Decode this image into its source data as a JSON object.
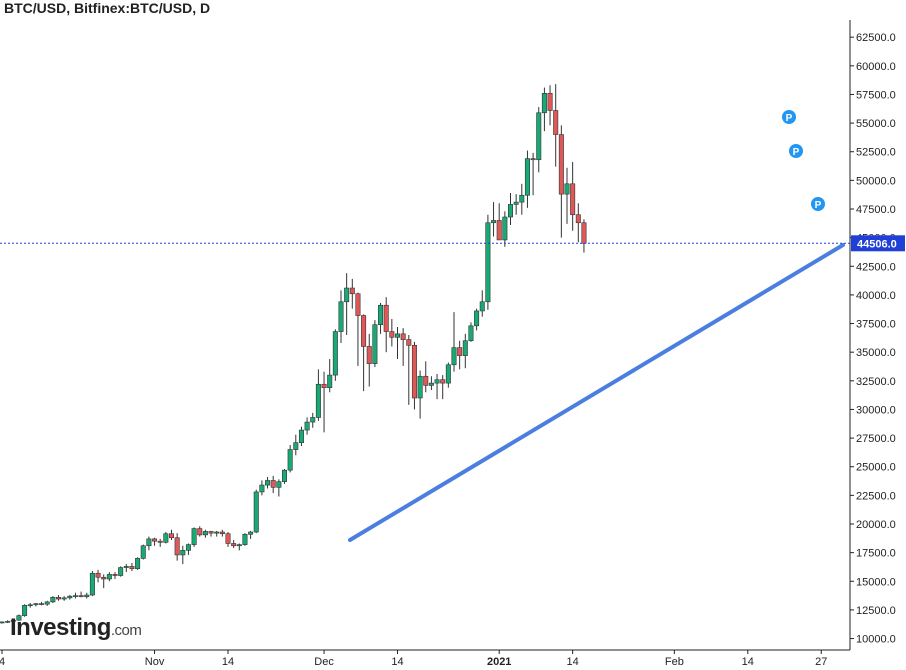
{
  "title": "BTC/USD, Bitfinex:BTC/USD, D",
  "logo": {
    "main": "Investing",
    "suffix": ".com"
  },
  "colors": {
    "up": "#19a974",
    "down": "#e05757",
    "trendline": "#4a7fe0",
    "price_line": "#1f3fd6",
    "marker": "#2196f3"
  },
  "current_price_label": "44506.0",
  "chart_data": {
    "type": "candlestick",
    "title": "BTC/USD, Bitfinex:BTC/USD, D",
    "ylim": [
      9000,
      64000
    ],
    "y_ticks": [
      "62500.0",
      "60000.0",
      "57500.0",
      "55000.0",
      "52500.0",
      "50000.0",
      "47500.0",
      "45000.0",
      "42500.0",
      "40000.0",
      "37500.0",
      "35000.0",
      "32500.0",
      "30000.0",
      "27500.0",
      "25000.0",
      "22500.0",
      "20000.0",
      "17500.0",
      "15000.0",
      "12500.0",
      "10000.0"
    ],
    "x_ticks": [
      {
        "label": "4",
        "index": 0
      },
      {
        "label": "Nov",
        "index": 27
      },
      {
        "label": "14",
        "index": 40
      },
      {
        "label": "Dec",
        "index": 57
      },
      {
        "label": "14",
        "index": 70
      },
      {
        "label": "2021",
        "index": 88
      },
      {
        "label": "14",
        "index": 101
      },
      {
        "label": "Feb",
        "index": 119
      },
      {
        "label": "14",
        "index": 132
      },
      {
        "label": "27",
        "index": 145
      }
    ],
    "current_price": 44506,
    "ohlc": [
      [
        11400,
        11500,
        11300,
        11450
      ],
      [
        11450,
        11600,
        11350,
        11500
      ],
      [
        11500,
        11700,
        11400,
        11600
      ],
      [
        11600,
        12100,
        11550,
        12000
      ],
      [
        12000,
        13000,
        11900,
        12900
      ],
      [
        12900,
        13100,
        12700,
        12950
      ],
      [
        12950,
        13100,
        12800,
        13050
      ],
      [
        13050,
        13200,
        12900,
        13000
      ],
      [
        13000,
        13300,
        12850,
        13200
      ],
      [
        13200,
        13700,
        13100,
        13600
      ],
      [
        13600,
        13800,
        13300,
        13450
      ],
      [
        13450,
        13700,
        13300,
        13550
      ],
      [
        13550,
        13800,
        13400,
        13700
      ],
      [
        13700,
        14000,
        13500,
        13750
      ],
      [
        13750,
        14100,
        13600,
        13650
      ],
      [
        13650,
        14000,
        13500,
        13800
      ],
      [
        13800,
        15900,
        13700,
        15700
      ],
      [
        15700,
        16000,
        14900,
        15350
      ],
      [
        15350,
        15600,
        14400,
        15200
      ],
      [
        15200,
        15800,
        15000,
        15600
      ],
      [
        15600,
        15800,
        15200,
        15500
      ],
      [
        15500,
        16300,
        15400,
        16200
      ],
      [
        16200,
        16500,
        15800,
        16300
      ],
      [
        16300,
        16600,
        15900,
        16100
      ],
      [
        16100,
        17100,
        16000,
        17000
      ],
      [
        17000,
        18200,
        16900,
        18100
      ],
      [
        18100,
        18900,
        17700,
        18700
      ],
      [
        18700,
        18800,
        18100,
        18500
      ],
      [
        18500,
        18700,
        18000,
        18400
      ],
      [
        18400,
        19300,
        18300,
        19150
      ],
      [
        19150,
        19500,
        18600,
        18800
      ],
      [
        18800,
        19200,
        16800,
        17300
      ],
      [
        17300,
        18100,
        16500,
        17700
      ],
      [
        17700,
        18300,
        17300,
        18200
      ],
      [
        18200,
        19700,
        18000,
        19600
      ],
      [
        19600,
        19800,
        18900,
        19050
      ],
      [
        19050,
        19500,
        18800,
        19350
      ],
      [
        19350,
        19400,
        18900,
        19200
      ],
      [
        19200,
        19400,
        18900,
        19300
      ],
      [
        19300,
        19500,
        18900,
        19150
      ],
      [
        19150,
        19300,
        18000,
        18300
      ],
      [
        18300,
        18600,
        17900,
        18100
      ],
      [
        18100,
        18300,
        17700,
        18200
      ],
      [
        18200,
        19200,
        18100,
        19100
      ],
      [
        19100,
        19400,
        18700,
        19300
      ],
      [
        19300,
        23000,
        19200,
        22800
      ],
      [
        22800,
        23800,
        22500,
        23400
      ],
      [
        23400,
        24100,
        23100,
        23800
      ],
      [
        23800,
        24200,
        22700,
        23200
      ],
      [
        23200,
        23900,
        22400,
        23700
      ],
      [
        23700,
        24800,
        23500,
        24700
      ],
      [
        24700,
        26900,
        24500,
        26500
      ],
      [
        26500,
        27800,
        26000,
        27100
      ],
      [
        27100,
        28500,
        26800,
        28200
      ],
      [
        28200,
        29300,
        27800,
        28900
      ],
      [
        28900,
        29700,
        28400,
        29300
      ],
      [
        29300,
        33500,
        29000,
        32200
      ],
      [
        32200,
        33300,
        28000,
        31900
      ],
      [
        31900,
        34400,
        31500,
        33000
      ],
      [
        33000,
        37000,
        32500,
        36800
      ],
      [
        36800,
        40400,
        35800,
        39400
      ],
      [
        39400,
        41900,
        36500,
        40600
      ],
      [
        40600,
        41400,
        38800,
        40100
      ],
      [
        40100,
        40200,
        33800,
        38200
      ],
      [
        38200,
        38300,
        31600,
        35500
      ],
      [
        35500,
        36600,
        32000,
        34000
      ],
      [
        34000,
        37800,
        33700,
        37400
      ],
      [
        37400,
        39300,
        36600,
        39100
      ],
      [
        39100,
        39800,
        35000,
        36800
      ],
      [
        36800,
        37900,
        35500,
        36300
      ],
      [
        36300,
        37200,
        34400,
        36600
      ],
      [
        36600,
        37100,
        33800,
        36100
      ],
      [
        36100,
        36500,
        30400,
        35600
      ],
      [
        35600,
        35900,
        30000,
        31000
      ],
      [
        31000,
        33400,
        29200,
        32900
      ],
      [
        32900,
        34200,
        31500,
        32100
      ],
      [
        32100,
        32900,
        31700,
        32300
      ],
      [
        32300,
        33100,
        30900,
        32600
      ],
      [
        32600,
        33000,
        30900,
        32300
      ],
      [
        32300,
        34100,
        31900,
        33900
      ],
      [
        33900,
        38500,
        33300,
        35400
      ],
      [
        35400,
        36000,
        33500,
        34700
      ],
      [
        34700,
        36600,
        33600,
        36000
      ],
      [
        36000,
        37600,
        35900,
        37300
      ],
      [
        37300,
        38800,
        36900,
        38600
      ],
      [
        38600,
        40400,
        38100,
        39400
      ],
      [
        39400,
        47000,
        38700,
        46300
      ],
      [
        46300,
        48100,
        45100,
        46500
      ],
      [
        46500,
        48000,
        44900,
        44800
      ],
      [
        44800,
        47300,
        44200,
        46800
      ],
      [
        46800,
        48900,
        46100,
        47900
      ],
      [
        47900,
        48800,
        47000,
        48100
      ],
      [
        48100,
        49700,
        47000,
        48700
      ],
      [
        48700,
        52600,
        47600,
        51900
      ],
      [
        51900,
        52400,
        48700,
        51800
      ],
      [
        51800,
        56400,
        50700,
        55900
      ],
      [
        55900,
        58100,
        54300,
        57600
      ],
      [
        57600,
        58300,
        54800,
        56100
      ],
      [
        56100,
        58400,
        51200,
        54000
      ],
      [
        54000,
        54800,
        45000,
        48800
      ],
      [
        48800,
        51100,
        46200,
        49700
      ],
      [
        49700,
        51600,
        45600,
        47000
      ],
      [
        47000,
        48000,
        44600,
        46300
      ],
      [
        46300,
        46600,
        43700,
        44506
      ]
    ]
  }
}
